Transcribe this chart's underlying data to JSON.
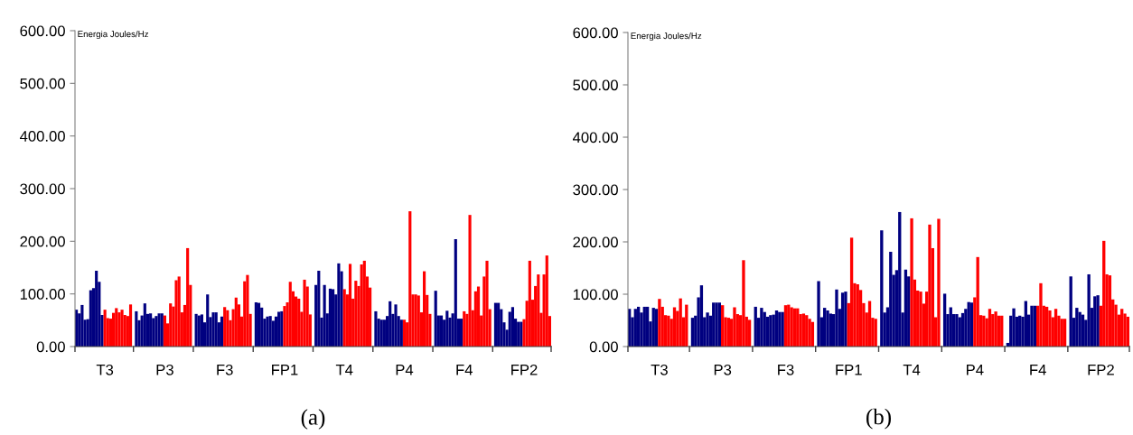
{
  "chart_data": [
    {
      "type": "bar",
      "ylabel": "Energia Joules/Hz",
      "annotations": [
        "(a)"
      ],
      "ylim": [
        0,
        600
      ],
      "yticks": [
        {
          "value": 0,
          "label": "0.00"
        },
        {
          "value": 100,
          "label": "100.00"
        },
        {
          "value": 200,
          "label": "200.00"
        },
        {
          "value": 300,
          "label": "300.00"
        },
        {
          "value": 400,
          "label": "400.00"
        },
        {
          "value": 500,
          "label": "500.00"
        },
        {
          "value": 600,
          "label": "600.00"
        }
      ],
      "grid": false,
      "legend": false,
      "categories": [
        null,
        null,
        null,
        null,
        null,
        null,
        null,
        null,
        null,
        null,
        "T3",
        null,
        null,
        null,
        null,
        null,
        null,
        null,
        null,
        null,
        null,
        null,
        null,
        null,
        null,
        null,
        null,
        null,
        null,
        null,
        null,
        "P3",
        null,
        null,
        null,
        null,
        null,
        null,
        null,
        null,
        null,
        null,
        null,
        null,
        null,
        null,
        null,
        null,
        null,
        null,
        null,
        null,
        "F3",
        null,
        null,
        null,
        null,
        null,
        null,
        null,
        null,
        null,
        null,
        null,
        null,
        null,
        null,
        null,
        null,
        null,
        null,
        null,
        null,
        "FP1",
        null,
        null,
        null,
        null,
        null,
        null,
        null,
        null,
        null,
        null,
        null,
        null,
        null,
        null,
        null,
        null,
        null,
        null,
        null,
        null,
        "T4",
        null,
        null,
        null,
        null,
        null,
        null,
        null,
        null,
        null,
        null,
        null,
        null,
        null,
        null,
        null,
        null,
        null,
        null,
        null,
        null,
        "P4",
        null,
        null,
        null,
        null,
        null,
        null,
        null,
        null,
        null,
        null,
        null,
        null,
        null,
        null,
        null,
        null,
        null,
        null,
        null,
        null,
        "F4",
        null,
        null,
        null,
        null,
        null,
        null,
        null,
        null,
        null,
        null,
        null,
        null,
        null,
        null,
        null,
        null,
        null,
        null,
        null,
        null,
        "FP2",
        null,
        null,
        null,
        null,
        null,
        null,
        null,
        null,
        null
      ],
      "values": [
        70,
        63,
        79,
        51,
        52,
        107,
        111,
        144,
        123,
        60,
        70,
        54,
        53,
        64,
        73,
        65,
        70,
        60,
        58,
        80,
        null,
        67,
        50,
        59,
        82,
        62,
        63,
        54,
        58,
        63,
        63,
        59,
        44,
        82,
        76,
        126,
        133,
        65,
        79,
        187,
        117,
        null,
        62,
        59,
        61,
        46,
        99,
        56,
        65,
        65,
        46,
        57,
        75,
        69,
        50,
        71,
        93,
        80,
        57,
        124,
        136,
        62,
        null,
        84,
        83,
        74,
        53,
        57,
        58,
        49,
        57,
        66,
        67,
        77,
        84,
        123,
        105,
        95,
        91,
        66,
        127,
        114,
        61,
        null,
        117,
        144,
        55,
        117,
        63,
        110,
        109,
        99,
        158,
        143,
        109,
        99,
        157,
        91,
        125,
        115,
        156,
        163,
        133,
        112,
        null,
        67,
        53,
        51,
        51,
        58,
        86,
        62,
        80,
        58,
        51,
        51,
        46,
        257,
        99,
        99,
        97,
        65,
        143,
        98,
        62,
        null,
        106,
        59,
        59,
        51,
        68,
        55,
        63,
        204,
        53,
        53,
        67,
        62,
        250,
        69,
        105,
        114,
        59,
        133,
        163,
        71,
        null,
        83,
        83,
        71,
        46,
        32,
        66,
        75,
        53,
        47,
        47,
        52,
        87,
        163,
        89,
        115,
        137,
        64,
        137,
        173,
        58
      ],
      "colors": [
        "#000080",
        "#000080",
        "#000080",
        "#000080",
        "#000080",
        "#000080",
        "#000080",
        "#000080",
        "#000080",
        "#000080",
        "#ff0000",
        "#ff0000",
        "#ff0000",
        "#ff0000",
        "#ff0000",
        "#ff0000",
        "#ff0000",
        "#ff0000",
        "#ff0000",
        "#ff0000",
        null,
        "#000080",
        "#000080",
        "#000080",
        "#000080",
        "#000080",
        "#000080",
        "#000080",
        "#000080",
        "#000080",
        "#000080",
        "#ff0000",
        "#ff0000",
        "#ff0000",
        "#ff0000",
        "#ff0000",
        "#ff0000",
        "#ff0000",
        "#ff0000",
        "#ff0000",
        "#ff0000",
        null,
        "#000080",
        "#000080",
        "#000080",
        "#000080",
        "#000080",
        "#000080",
        "#000080",
        "#000080",
        "#000080",
        "#000080",
        "#ff0000",
        "#ff0000",
        "#ff0000",
        "#ff0000",
        "#ff0000",
        "#ff0000",
        "#ff0000",
        "#ff0000",
        "#ff0000",
        "#ff0000",
        null,
        "#000080",
        "#000080",
        "#000080",
        "#000080",
        "#000080",
        "#000080",
        "#000080",
        "#000080",
        "#000080",
        "#000080",
        "#ff0000",
        "#ff0000",
        "#ff0000",
        "#ff0000",
        "#ff0000",
        "#ff0000",
        "#ff0000",
        "#ff0000",
        "#ff0000",
        "#ff0000",
        null,
        "#000080",
        "#000080",
        "#000080",
        "#000080",
        "#000080",
        "#000080",
        "#000080",
        "#000080",
        "#000080",
        "#000080",
        "#ff0000",
        "#ff0000",
        "#ff0000",
        "#ff0000",
        "#ff0000",
        "#ff0000",
        "#ff0000",
        "#ff0000",
        "#ff0000",
        "#ff0000",
        null,
        "#000080",
        "#000080",
        "#000080",
        "#000080",
        "#000080",
        "#000080",
        "#000080",
        "#000080",
        "#000080",
        "#000080",
        "#ff0000",
        "#ff0000",
        "#ff0000",
        "#ff0000",
        "#ff0000",
        "#ff0000",
        "#ff0000",
        "#ff0000",
        "#ff0000",
        "#ff0000",
        null,
        "#000080",
        "#000080",
        "#000080",
        "#000080",
        "#000080",
        "#000080",
        "#000080",
        "#000080",
        "#000080",
        "#000080",
        "#ff0000",
        "#ff0000",
        "#ff0000",
        "#ff0000",
        "#ff0000",
        "#ff0000",
        "#ff0000",
        "#ff0000",
        "#ff0000",
        "#ff0000",
        null,
        "#000080",
        "#000080",
        "#000080",
        "#000080",
        "#000080",
        "#000080",
        "#000080",
        "#000080",
        "#000080",
        "#000080",
        "#ff0000",
        "#ff0000",
        "#ff0000",
        "#ff0000",
        "#ff0000",
        "#ff0000",
        "#ff0000",
        "#ff0000",
        "#ff0000",
        "#ff0000"
      ]
    },
    {
      "type": "bar",
      "ylabel": "Energia Joules/Hz",
      "annotations": [
        "(b)"
      ],
      "ylim": [
        0,
        600
      ],
      "yticks": [
        {
          "value": 0,
          "label": "0.00"
        },
        {
          "value": 100,
          "label": "100.00"
        },
        {
          "value": 200,
          "label": "200.00"
        },
        {
          "value": 300,
          "label": "300.00"
        },
        {
          "value": 400,
          "label": "400.00"
        },
        {
          "value": 500,
          "label": "500.00"
        },
        {
          "value": 600,
          "label": "600.00"
        }
      ],
      "grid": false,
      "legend": false,
      "categories": [
        null,
        null,
        null,
        null,
        null,
        null,
        null,
        null,
        null,
        null,
        "T3",
        null,
        null,
        null,
        null,
        null,
        null,
        null,
        null,
        null,
        null,
        null,
        null,
        null,
        null,
        null,
        null,
        null,
        null,
        null,
        null,
        "P3",
        null,
        null,
        null,
        null,
        null,
        null,
        null,
        null,
        null,
        null,
        null,
        null,
        null,
        null,
        null,
        null,
        null,
        null,
        null,
        null,
        "F3",
        null,
        null,
        null,
        null,
        null,
        null,
        null,
        null,
        null,
        null,
        null,
        null,
        null,
        null,
        null,
        null,
        null,
        null,
        null,
        null,
        "FP1",
        null,
        null,
        null,
        null,
        null,
        null,
        null,
        null,
        null,
        null,
        null,
        null,
        null,
        null,
        null,
        null,
        null,
        null,
        null,
        null,
        "T4",
        null,
        null,
        null,
        null,
        null,
        null,
        null,
        null,
        null,
        null,
        null,
        null,
        null,
        null,
        null,
        null,
        null,
        null,
        null,
        null,
        "P4",
        null,
        null,
        null,
        null,
        null,
        null,
        null,
        null,
        null,
        null,
        null,
        null,
        null,
        null,
        null,
        null,
        null,
        null,
        null,
        null,
        "F4",
        null,
        null,
        null,
        null,
        null,
        null,
        null,
        null,
        null,
        null,
        null,
        null,
        null,
        null,
        null,
        null,
        null,
        null,
        null,
        null,
        "FP2",
        null,
        null,
        null,
        null,
        null,
        null,
        null,
        null,
        null
      ],
      "values": [
        72,
        56,
        72,
        76,
        65,
        76,
        76,
        48,
        74,
        72,
        91,
        76,
        60,
        59,
        53,
        75,
        68,
        92,
        56,
        80,
        null,
        55,
        59,
        94,
        117,
        56,
        65,
        59,
        84,
        84,
        84,
        79,
        56,
        55,
        53,
        75,
        62,
        60,
        165,
        57,
        51,
        null,
        76,
        55,
        74,
        66,
        57,
        60,
        61,
        69,
        66,
        66,
        79,
        80,
        75,
        73,
        73,
        62,
        63,
        60,
        53,
        47,
        null,
        125,
        56,
        74,
        69,
        63,
        62,
        109,
        72,
        103,
        105,
        83,
        208,
        121,
        119,
        108,
        83,
        65,
        87,
        55,
        53,
        null,
        222,
        65,
        75,
        181,
        137,
        146,
        257,
        65,
        147,
        134,
        245,
        128,
        107,
        105,
        82,
        105,
        233,
        188,
        56,
        244,
        null,
        101,
        62,
        75,
        62,
        62,
        56,
        64,
        72,
        85,
        84,
        94,
        171,
        60,
        59,
        54,
        72,
        62,
        67,
        59,
        59,
        null,
        7,
        59,
        73,
        57,
        59,
        57,
        87,
        61,
        78,
        78,
        78,
        121,
        78,
        76,
        69,
        56,
        72,
        59,
        53,
        53,
        null,
        134,
        55,
        74,
        66,
        61,
        51,
        138,
        74,
        96,
        98,
        78,
        202,
        138,
        136,
        90,
        80,
        61,
        72,
        63,
        57
      ],
      "colors": [
        "#000080",
        "#000080",
        "#000080",
        "#000080",
        "#000080",
        "#000080",
        "#000080",
        "#000080",
        "#000080",
        "#000080",
        "#ff0000",
        "#ff0000",
        "#ff0000",
        "#ff0000",
        "#ff0000",
        "#ff0000",
        "#ff0000",
        "#ff0000",
        "#ff0000",
        "#ff0000",
        null,
        "#000080",
        "#000080",
        "#000080",
        "#000080",
        "#000080",
        "#000080",
        "#000080",
        "#000080",
        "#000080",
        "#000080",
        "#ff0000",
        "#ff0000",
        "#ff0000",
        "#ff0000",
        "#ff0000",
        "#ff0000",
        "#ff0000",
        "#ff0000",
        "#ff0000",
        "#ff0000",
        null,
        "#000080",
        "#000080",
        "#000080",
        "#000080",
        "#000080",
        "#000080",
        "#000080",
        "#000080",
        "#000080",
        "#000080",
        "#ff0000",
        "#ff0000",
        "#ff0000",
        "#ff0000",
        "#ff0000",
        "#ff0000",
        "#ff0000",
        "#ff0000",
        "#ff0000",
        "#ff0000",
        null,
        "#000080",
        "#000080",
        "#000080",
        "#000080",
        "#000080",
        "#000080",
        "#000080",
        "#000080",
        "#000080",
        "#000080",
        "#ff0000",
        "#ff0000",
        "#ff0000",
        "#ff0000",
        "#ff0000",
        "#ff0000",
        "#ff0000",
        "#ff0000",
        "#ff0000",
        "#ff0000",
        null,
        "#000080",
        "#000080",
        "#000080",
        "#000080",
        "#000080",
        "#000080",
        "#000080",
        "#000080",
        "#000080",
        "#000080",
        "#ff0000",
        "#ff0000",
        "#ff0000",
        "#ff0000",
        "#ff0000",
        "#ff0000",
        "#ff0000",
        "#ff0000",
        "#ff0000",
        "#ff0000",
        null,
        "#000080",
        "#000080",
        "#000080",
        "#000080",
        "#000080",
        "#000080",
        "#000080",
        "#000080",
        "#000080",
        "#000080",
        "#ff0000",
        "#ff0000",
        "#ff0000",
        "#ff0000",
        "#ff0000",
        "#ff0000",
        "#ff0000",
        "#ff0000",
        "#ff0000",
        "#ff0000",
        null,
        "#000080",
        "#000080",
        "#000080",
        "#000080",
        "#000080",
        "#000080",
        "#000080",
        "#000080",
        "#000080",
        "#000080",
        "#ff0000",
        "#ff0000",
        "#ff0000",
        "#ff0000",
        "#ff0000",
        "#ff0000",
        "#ff0000",
        "#ff0000",
        "#ff0000",
        "#ff0000",
        null,
        "#000080",
        "#000080",
        "#000080",
        "#000080",
        "#000080",
        "#000080",
        "#000080",
        "#000080",
        "#000080",
        "#000080",
        "#ff0000",
        "#ff0000",
        "#ff0000",
        "#ff0000",
        "#ff0000",
        "#ff0000",
        "#ff0000",
        "#ff0000",
        "#ff0000",
        "#ff0000"
      ]
    }
  ]
}
